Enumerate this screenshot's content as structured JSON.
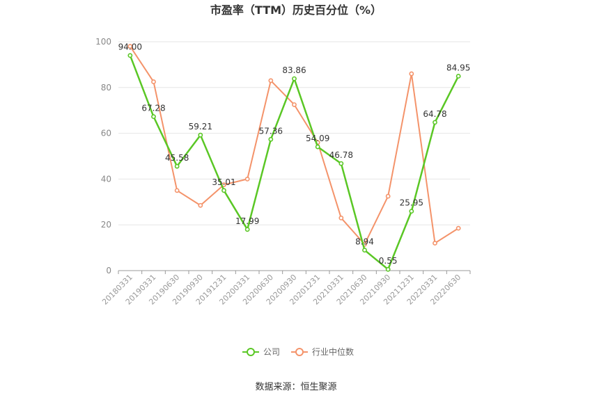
{
  "chart_data": {
    "type": "line",
    "title": "市盈率（TTM）历史百分位（%）",
    "categories": [
      "20180331",
      "20190331",
      "20190630",
      "20190930",
      "20191231",
      "20200331",
      "20200630",
      "20200930",
      "20201231",
      "20210331",
      "20210630",
      "20210930",
      "20211231",
      "20220331",
      "20220630"
    ],
    "series": [
      {
        "name": "公司",
        "color": "#5ac725",
        "values": [
          94.0,
          67.28,
          45.58,
          59.21,
          35.01,
          17.99,
          57.36,
          83.86,
          54.09,
          46.78,
          8.94,
          0.55,
          25.95,
          64.78,
          84.95
        ],
        "labels": [
          "94.00",
          "67.28",
          "45.58",
          "59.21",
          "35.01",
          "17.99",
          "57.36",
          "83.86",
          "54.09",
          "46.78",
          "8.94",
          "0.55",
          "25.95",
          "64.78",
          "84.95"
        ]
      },
      {
        "name": "行业中位数",
        "color": "#f4936a",
        "values": [
          98,
          82.5,
          35,
          28.5,
          37.5,
          40,
          83,
          72.5,
          56,
          23,
          11.5,
          32.5,
          86,
          12,
          18.5
        ]
      }
    ],
    "yticks": [
      "0",
      "20",
      "40",
      "60",
      "80",
      "100"
    ],
    "ylim": [
      0,
      100
    ],
    "grid": true,
    "legend": "bottom-center"
  },
  "source": "数据来源：恒生聚源"
}
